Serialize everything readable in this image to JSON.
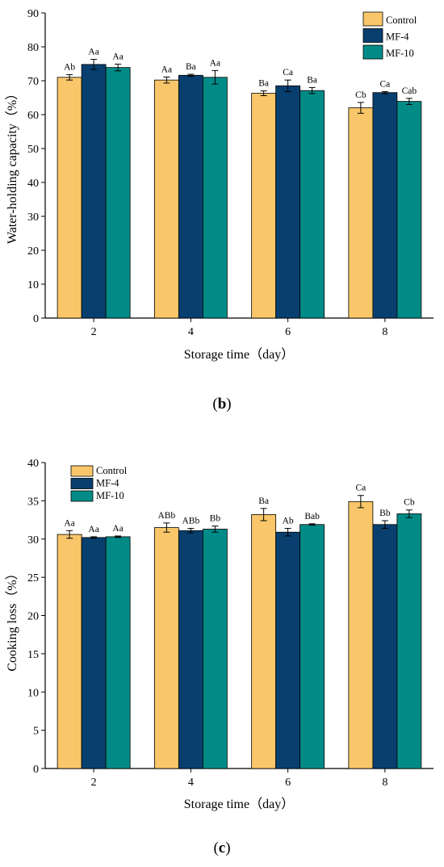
{
  "panels": [
    {
      "letter": "b",
      "letter_prefix": "(",
      "letter_suffix": ")",
      "chart_data": {
        "type": "bar",
        "title": "",
        "xlabel": "Storage time（day）",
        "ylabel": "Water-holding capacity（%）",
        "categories": [
          "2",
          "4",
          "6",
          "8"
        ],
        "ylim": [
          0,
          90
        ],
        "yticks": [
          0,
          10,
          20,
          30,
          40,
          50,
          60,
          70,
          80,
          90
        ],
        "grid": false,
        "legend_position": "top-right",
        "series": [
          {
            "name": "Control",
            "color": "#F9C76A",
            "values": [
              71.0,
              70.2,
              66.3,
              62.0
            ],
            "errors": [
              0.8,
              0.9,
              0.7,
              1.6
            ],
            "labels": [
              "Ab",
              "Aa",
              "Ba",
              "Cb"
            ]
          },
          {
            "name": "MF-4",
            "color": "#083F6E",
            "values": [
              74.8,
              71.6,
              68.5,
              66.5
            ],
            "errors": [
              1.5,
              0.3,
              1.7,
              0.3
            ],
            "labels": [
              "Aa",
              "Ba",
              "Ca",
              "Ca"
            ]
          },
          {
            "name": "MF-10",
            "color": "#008B87",
            "values": [
              73.9,
              71.0,
              67.1,
              63.9
            ],
            "errors": [
              1.0,
              2.0,
              0.9,
              0.9
            ],
            "labels": [
              "Aa",
              "Aa",
              "Ba",
              "Cab"
            ]
          }
        ]
      }
    },
    {
      "letter": "c",
      "letter_prefix": "(",
      "letter_suffix": ")",
      "chart_data": {
        "type": "bar",
        "title": "",
        "xlabel": "Storage time（day）",
        "ylabel": "Cooking loss（%）",
        "categories": [
          "2",
          "4",
          "6",
          "8"
        ],
        "ylim": [
          0,
          40
        ],
        "yticks": [
          0,
          5,
          10,
          15,
          20,
          25,
          30,
          35,
          40
        ],
        "grid": false,
        "legend_position": "top-left",
        "series": [
          {
            "name": "Control",
            "color": "#F9C76A",
            "values": [
              30.6,
              31.5,
              33.2,
              34.9
            ],
            "errors": [
              0.5,
              0.6,
              0.8,
              0.8
            ],
            "labels": [
              "Aa",
              "ABb",
              "Ba",
              "Ca"
            ]
          },
          {
            "name": "MF-4",
            "color": "#083F6E",
            "values": [
              30.2,
              31.1,
              30.9,
              31.9
            ],
            "errors": [
              0.1,
              0.3,
              0.5,
              0.5
            ],
            "labels": [
              "Aa",
              "ABb",
              "Ab",
              "Bb"
            ]
          },
          {
            "name": "MF-10",
            "color": "#008B87",
            "values": [
              30.3,
              31.3,
              31.9,
              33.3
            ],
            "errors": [
              0.1,
              0.4,
              0.1,
              0.5
            ],
            "labels": [
              "Aa",
              "Bb",
              "Bab",
              "Cb"
            ]
          }
        ]
      }
    }
  ]
}
